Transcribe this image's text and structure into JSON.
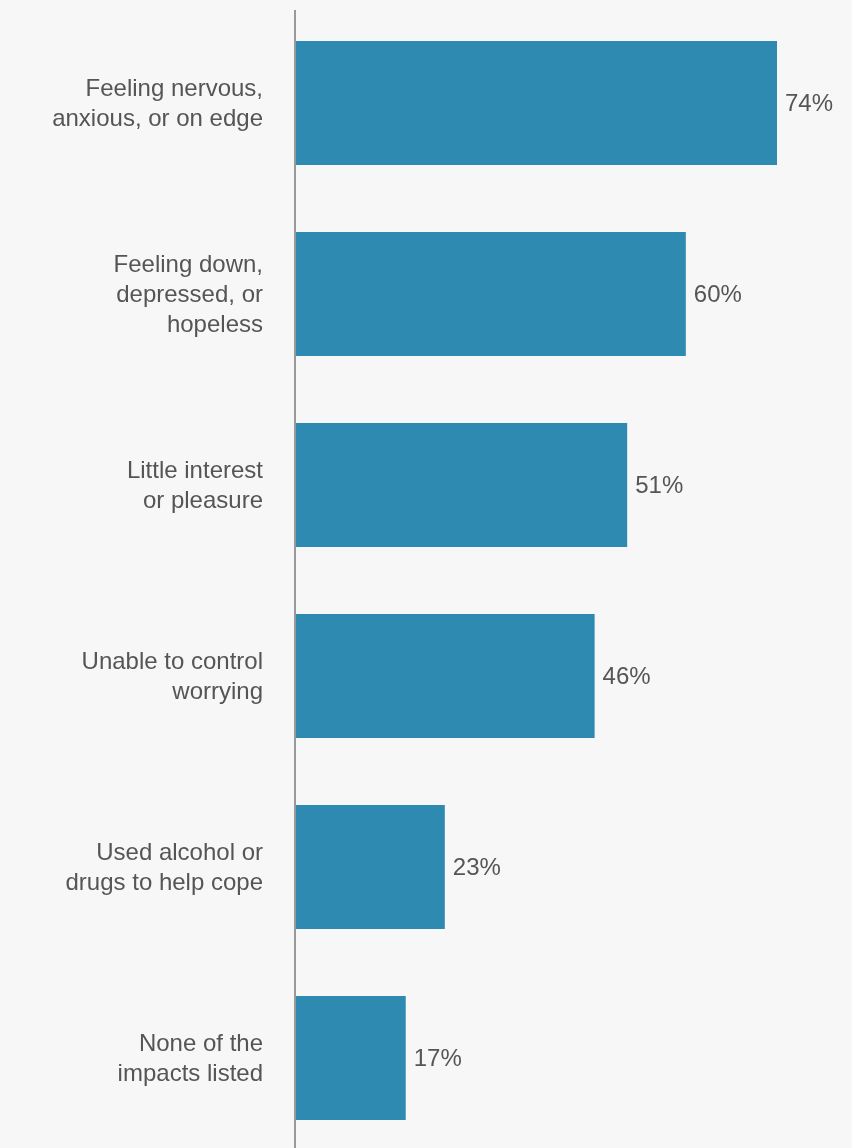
{
  "chart_data": {
    "type": "bar",
    "orientation": "horizontal",
    "categories": [
      "Feeling nervous,\nanxious, or on edge",
      "Feeling down,\ndepressed, or\nhopeless",
      "Little interest\nor pleasure",
      "Unable to control\nworrying",
      "Used alcohol or\ndrugs to help cope",
      "None of the\nimpacts listed"
    ],
    "values": [
      74,
      60,
      51,
      46,
      23,
      17
    ],
    "value_labels": [
      "74%",
      "60%",
      "51%",
      "46%",
      "23%",
      "17%"
    ],
    "color": "#2e8ab0"
  }
}
